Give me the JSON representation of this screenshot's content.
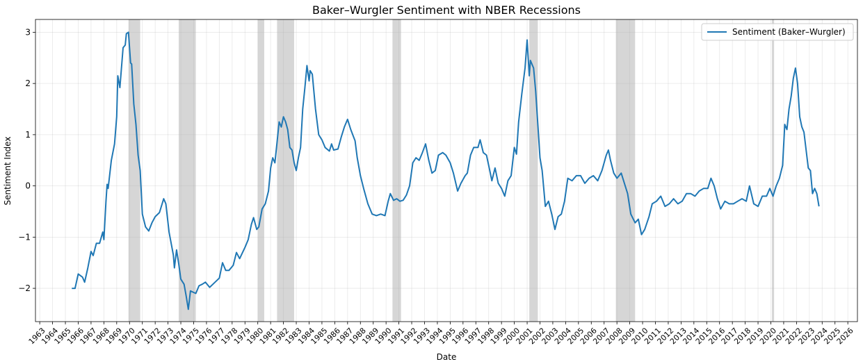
{
  "chart_data": {
    "type": "line",
    "title": "Baker–Wurgler Sentiment with NBER Recessions",
    "xlabel": "Date",
    "ylabel": "Sentiment Index",
    "xlim": [
      "1962-09",
      "2026-10"
    ],
    "ylim": [
      -2.65,
      3.25
    ],
    "yticks": [
      "−2",
      "−1",
      "0",
      "1",
      "2",
      "3"
    ],
    "xticks": [
      "1963",
      "1964",
      "1965",
      "1966",
      "1967",
      "1968",
      "1969",
      "1970",
      "1971",
      "1972",
      "1973",
      "1974",
      "1975",
      "1976",
      "1977",
      "1978",
      "1979",
      "1980",
      "1981",
      "1982",
      "1983",
      "1984",
      "1985",
      "1986",
      "1987",
      "1988",
      "1989",
      "1990",
      "1991",
      "1992",
      "1993",
      "1994",
      "1995",
      "1996",
      "1997",
      "1998",
      "1999",
      "2000",
      "2001",
      "2002",
      "2003",
      "2004",
      "2005",
      "2006",
      "2007",
      "2008",
      "2009",
      "2010",
      "2011",
      "2012",
      "2013",
      "2014",
      "2015",
      "2016",
      "2017",
      "2018",
      "2019",
      "2020",
      "2021",
      "2022",
      "2023",
      "2024",
      "2025",
      "2026"
    ],
    "grid": true,
    "legend": {
      "placement": "top-right",
      "entries": [
        "Sentiment (Baker–Wurgler)"
      ]
    },
    "recessions": [
      [
        "1969-12",
        "1970-11"
      ],
      [
        "1973-11",
        "1975-03"
      ],
      [
        "1980-01",
        "1980-07"
      ],
      [
        "1981-07",
        "1982-11"
      ],
      [
        "1990-07",
        "1991-03"
      ],
      [
        "2001-03",
        "2001-11"
      ],
      [
        "2007-12",
        "2009-06"
      ],
      [
        "2020-02",
        "2020-04"
      ]
    ],
    "series": [
      {
        "name": "Sentiment (Baker–Wurgler)",
        "color": "#1f77b4",
        "points": [
          [
            "1965-07",
            -2.0
          ],
          [
            "1965-10",
            -2.0
          ],
          [
            "1966-01",
            -1.72
          ],
          [
            "1966-05",
            -1.78
          ],
          [
            "1966-07",
            -1.88
          ],
          [
            "1966-10",
            -1.6
          ],
          [
            "1967-01",
            -1.28
          ],
          [
            "1967-03",
            -1.36
          ],
          [
            "1967-06",
            -1.12
          ],
          [
            "1967-09",
            -1.12
          ],
          [
            "1967-12",
            -0.9
          ],
          [
            "1968-01",
            -1.05
          ],
          [
            "1968-03",
            -0.3
          ],
          [
            "1968-04",
            0.03
          ],
          [
            "1968-05",
            -0.05
          ],
          [
            "1968-08",
            0.5
          ],
          [
            "1968-11",
            0.82
          ],
          [
            "1969-01",
            1.35
          ],
          [
            "1969-02",
            2.15
          ],
          [
            "1969-04",
            1.92
          ],
          [
            "1969-07",
            2.7
          ],
          [
            "1969-09",
            2.75
          ],
          [
            "1969-10",
            2.97
          ],
          [
            "1969-12",
            3.0
          ],
          [
            "1970-02",
            2.4
          ],
          [
            "1970-03",
            2.38
          ],
          [
            "1970-05",
            1.6
          ],
          [
            "1970-07",
            1.2
          ],
          [
            "1970-09",
            0.6
          ],
          [
            "1970-11",
            0.3
          ],
          [
            "1971-01",
            -0.55
          ],
          [
            "1971-04",
            -0.8
          ],
          [
            "1971-07",
            -0.88
          ],
          [
            "1971-10",
            -0.72
          ],
          [
            "1972-01",
            -0.6
          ],
          [
            "1972-05",
            -0.52
          ],
          [
            "1972-09",
            -0.25
          ],
          [
            "1972-11",
            -0.35
          ],
          [
            "1973-02",
            -0.9
          ],
          [
            "1973-06",
            -1.35
          ],
          [
            "1973-07",
            -1.6
          ],
          [
            "1973-09",
            -1.25
          ],
          [
            "1973-11",
            -1.52
          ],
          [
            "1974-01",
            -1.82
          ],
          [
            "1974-04",
            -1.92
          ],
          [
            "1974-06",
            -2.15
          ],
          [
            "1974-08",
            -2.41
          ],
          [
            "1974-10",
            -2.05
          ],
          [
            "1975-01",
            -2.08
          ],
          [
            "1975-03",
            -2.1
          ],
          [
            "1975-06",
            -1.95
          ],
          [
            "1975-09",
            -1.92
          ],
          [
            "1975-12",
            -1.88
          ],
          [
            "1976-04",
            -1.98
          ],
          [
            "1976-08",
            -1.9
          ],
          [
            "1977-01",
            -1.8
          ],
          [
            "1977-04",
            -1.5
          ],
          [
            "1977-07",
            -1.65
          ],
          [
            "1977-10",
            -1.65
          ],
          [
            "1978-02",
            -1.55
          ],
          [
            "1978-05",
            -1.3
          ],
          [
            "1978-08",
            -1.42
          ],
          [
            "1979-01",
            -1.2
          ],
          [
            "1979-04",
            -1.05
          ],
          [
            "1979-07",
            -0.75
          ],
          [
            "1979-09",
            -0.62
          ],
          [
            "1979-12",
            -0.85
          ],
          [
            "1980-02",
            -0.8
          ],
          [
            "1980-05",
            -0.45
          ],
          [
            "1980-08",
            -0.35
          ],
          [
            "1980-11",
            -0.1
          ],
          [
            "1981-01",
            0.35
          ],
          [
            "1981-03",
            0.55
          ],
          [
            "1981-05",
            0.45
          ],
          [
            "1981-07",
            0.85
          ],
          [
            "1981-09",
            1.25
          ],
          [
            "1981-11",
            1.15
          ],
          [
            "1982-01",
            1.35
          ],
          [
            "1982-03",
            1.25
          ],
          [
            "1982-05",
            1.1
          ],
          [
            "1982-07",
            0.75
          ],
          [
            "1982-09",
            0.7
          ],
          [
            "1982-11",
            0.45
          ],
          [
            "1983-01",
            0.3
          ],
          [
            "1983-03",
            0.55
          ],
          [
            "1983-05",
            0.75
          ],
          [
            "1983-07",
            1.5
          ],
          [
            "1983-09",
            1.9
          ],
          [
            "1983-11",
            2.35
          ],
          [
            "1984-01",
            2.05
          ],
          [
            "1984-02",
            2.25
          ],
          [
            "1984-04",
            2.18
          ],
          [
            "1984-07",
            1.5
          ],
          [
            "1984-10",
            1.0
          ],
          [
            "1985-01",
            0.9
          ],
          [
            "1985-04",
            0.75
          ],
          [
            "1985-08",
            0.68
          ],
          [
            "1985-10",
            0.82
          ],
          [
            "1985-12",
            0.7
          ],
          [
            "1986-04",
            0.72
          ],
          [
            "1986-07",
            0.95
          ],
          [
            "1986-10",
            1.15
          ],
          [
            "1987-01",
            1.3
          ],
          [
            "1987-04",
            1.1
          ],
          [
            "1987-08",
            0.88
          ],
          [
            "1987-10",
            0.55
          ],
          [
            "1988-01",
            0.2
          ],
          [
            "1988-04",
            -0.05
          ],
          [
            "1988-08",
            -0.35
          ],
          [
            "1988-12",
            -0.55
          ],
          [
            "1989-04",
            -0.58
          ],
          [
            "1989-08",
            -0.55
          ],
          [
            "1989-12",
            -0.58
          ],
          [
            "1990-03",
            -0.3
          ],
          [
            "1990-05",
            -0.15
          ],
          [
            "1990-08",
            -0.28
          ],
          [
            "1990-11",
            -0.25
          ],
          [
            "1991-02",
            -0.3
          ],
          [
            "1991-05",
            -0.28
          ],
          [
            "1991-08",
            -0.18
          ],
          [
            "1991-11",
            0.0
          ],
          [
            "1992-02",
            0.45
          ],
          [
            "1992-05",
            0.55
          ],
          [
            "1992-08",
            0.5
          ],
          [
            "1992-11",
            0.65
          ],
          [
            "1993-02",
            0.82
          ],
          [
            "1993-05",
            0.5
          ],
          [
            "1993-08",
            0.25
          ],
          [
            "1993-11",
            0.3
          ],
          [
            "1994-02",
            0.6
          ],
          [
            "1994-06",
            0.65
          ],
          [
            "1994-09",
            0.6
          ],
          [
            "1995-01",
            0.45
          ],
          [
            "1995-04",
            0.25
          ],
          [
            "1995-08",
            -0.1
          ],
          [
            "1995-11",
            0.05
          ],
          [
            "1996-03",
            0.2
          ],
          [
            "1996-05",
            0.25
          ],
          [
            "1996-08",
            0.6
          ],
          [
            "1996-11",
            0.75
          ],
          [
            "1997-03",
            0.75
          ],
          [
            "1997-05",
            0.9
          ],
          [
            "1997-08",
            0.65
          ],
          [
            "1997-11",
            0.6
          ],
          [
            "1998-02",
            0.3
          ],
          [
            "1998-04",
            0.1
          ],
          [
            "1998-07",
            0.35
          ],
          [
            "1998-10",
            0.05
          ],
          [
            "1999-01",
            -0.05
          ],
          [
            "1999-04",
            -0.2
          ],
          [
            "1999-07",
            0.1
          ],
          [
            "1999-10",
            0.2
          ],
          [
            "2000-01",
            0.75
          ],
          [
            "2000-03",
            0.62
          ],
          [
            "2000-05",
            1.25
          ],
          [
            "2000-08",
            1.8
          ],
          [
            "2000-11",
            2.3
          ],
          [
            "2001-01",
            2.85
          ],
          [
            "2001-03",
            2.15
          ],
          [
            "2001-04",
            2.45
          ],
          [
            "2001-07",
            2.3
          ],
          [
            "2001-09",
            1.85
          ],
          [
            "2001-11",
            1.2
          ],
          [
            "2002-01",
            0.55
          ],
          [
            "2002-03",
            0.3
          ],
          [
            "2002-06",
            -0.4
          ],
          [
            "2002-09",
            -0.3
          ],
          [
            "2002-12",
            -0.55
          ],
          [
            "2003-03",
            -0.85
          ],
          [
            "2003-06",
            -0.6
          ],
          [
            "2003-09",
            -0.55
          ],
          [
            "2003-12",
            -0.3
          ],
          [
            "2004-03",
            0.15
          ],
          [
            "2004-07",
            0.1
          ],
          [
            "2004-11",
            0.2
          ],
          [
            "2005-03",
            0.2
          ],
          [
            "2005-07",
            0.05
          ],
          [
            "2005-11",
            0.15
          ],
          [
            "2006-03",
            0.2
          ],
          [
            "2006-07",
            0.1
          ],
          [
            "2006-11",
            0.3
          ],
          [
            "2007-03",
            0.6
          ],
          [
            "2007-05",
            0.7
          ],
          [
            "2007-07",
            0.5
          ],
          [
            "2007-10",
            0.25
          ],
          [
            "2008-01",
            0.15
          ],
          [
            "2008-05",
            0.25
          ],
          [
            "2008-08",
            0.05
          ],
          [
            "2008-11",
            -0.15
          ],
          [
            "2009-02",
            -0.55
          ],
          [
            "2009-06",
            -0.72
          ],
          [
            "2009-09",
            -0.65
          ],
          [
            "2009-12",
            -0.95
          ],
          [
            "2010-03",
            -0.85
          ],
          [
            "2010-07",
            -0.6
          ],
          [
            "2010-10",
            -0.35
          ],
          [
            "2011-02",
            -0.3
          ],
          [
            "2011-06",
            -0.2
          ],
          [
            "2011-10",
            -0.4
          ],
          [
            "2012-02",
            -0.35
          ],
          [
            "2012-06",
            -0.25
          ],
          [
            "2012-10",
            -0.35
          ],
          [
            "2013-02",
            -0.3
          ],
          [
            "2013-06",
            -0.15
          ],
          [
            "2013-10",
            -0.15
          ],
          [
            "2014-02",
            -0.2
          ],
          [
            "2014-06",
            -0.1
          ],
          [
            "2014-10",
            -0.05
          ],
          [
            "2015-02",
            -0.05
          ],
          [
            "2015-05",
            0.15
          ],
          [
            "2015-08",
            0.0
          ],
          [
            "2015-11",
            -0.25
          ],
          [
            "2016-02",
            -0.45
          ],
          [
            "2016-06",
            -0.3
          ],
          [
            "2016-10",
            -0.35
          ],
          [
            "2017-02",
            -0.35
          ],
          [
            "2017-06",
            -0.3
          ],
          [
            "2017-10",
            -0.25
          ],
          [
            "2018-02",
            -0.3
          ],
          [
            "2018-05",
            0.0
          ],
          [
            "2018-09",
            -0.35
          ],
          [
            "2019-01",
            -0.4
          ],
          [
            "2019-05",
            -0.2
          ],
          [
            "2019-09",
            -0.2
          ],
          [
            "2019-12",
            -0.05
          ],
          [
            "2020-03",
            -0.2
          ],
          [
            "2020-06",
            0.0
          ],
          [
            "2020-09",
            0.15
          ],
          [
            "2020-12",
            0.4
          ],
          [
            "2021-02",
            1.2
          ],
          [
            "2021-04",
            1.1
          ],
          [
            "2021-06",
            1.5
          ],
          [
            "2021-08",
            1.75
          ],
          [
            "2021-10",
            2.1
          ],
          [
            "2021-12",
            2.3
          ],
          [
            "2022-02",
            2.0
          ],
          [
            "2022-04",
            1.35
          ],
          [
            "2022-06",
            1.15
          ],
          [
            "2022-08",
            1.05
          ],
          [
            "2022-10",
            0.7
          ],
          [
            "2022-12",
            0.35
          ],
          [
            "2023-02",
            0.3
          ],
          [
            "2023-04",
            -0.15
          ],
          [
            "2023-06",
            -0.05
          ],
          [
            "2023-08",
            -0.15
          ],
          [
            "2023-10",
            -0.4
          ]
        ]
      }
    ]
  }
}
